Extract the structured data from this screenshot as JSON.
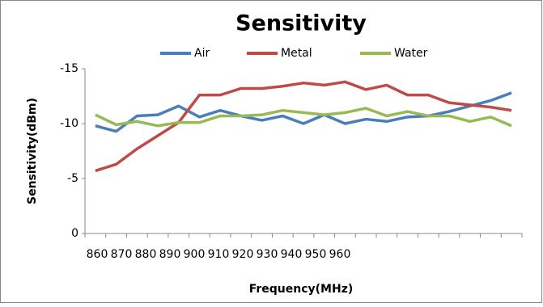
{
  "chart_data": {
    "type": "line",
    "title": "Sensitivity",
    "x_label": "Frequency(MHz)",
    "y_label": "Sensitivity(dBm)",
    "categories": [
      "860",
      null,
      "870",
      null,
      "880",
      null,
      "890",
      null,
      "900",
      null,
      "910",
      null,
      "920",
      null,
      "930",
      null,
      "940",
      null,
      "950",
      null,
      "960"
    ],
    "series": [
      {
        "name": "Air",
        "color": "#4a7ebb",
        "values": [
          -9.8,
          -9.3,
          -10.7,
          -10.8,
          -11.6,
          -10.6,
          -11.2,
          -10.7,
          -10.3,
          -10.7,
          -10.0,
          -10.8,
          -10.0,
          -10.4,
          -10.2,
          -10.6,
          -10.7,
          -11.1,
          -11.6,
          -12.1,
          -12.8
        ]
      },
      {
        "name": "Metal",
        "color": "#be4b48",
        "values": [
          -5.7,
          -6.3,
          -7.7,
          -8.9,
          -10.1,
          -12.6,
          -12.6,
          -13.2,
          -13.2,
          -13.4,
          -13.7,
          -13.5,
          -13.8,
          -13.1,
          -13.5,
          -12.6,
          -12.6,
          -11.9,
          -11.7,
          -11.5,
          -11.2
        ]
      },
      {
        "name": "Water",
        "color": "#98b954",
        "values": [
          -10.8,
          -9.9,
          -10.2,
          -9.8,
          -10.1,
          -10.1,
          -10.7,
          -10.7,
          -10.8,
          -11.2,
          -11.0,
          -10.8,
          -11.0,
          -11.4,
          -10.7,
          -11.1,
          -10.7,
          -10.7,
          -10.2,
          -10.6,
          -9.8
        ]
      }
    ],
    "ylim": [
      0,
      -15
    ],
    "yticks": [
      0,
      -5,
      -10,
      -15
    ],
    "grid": false,
    "legend": "top"
  }
}
